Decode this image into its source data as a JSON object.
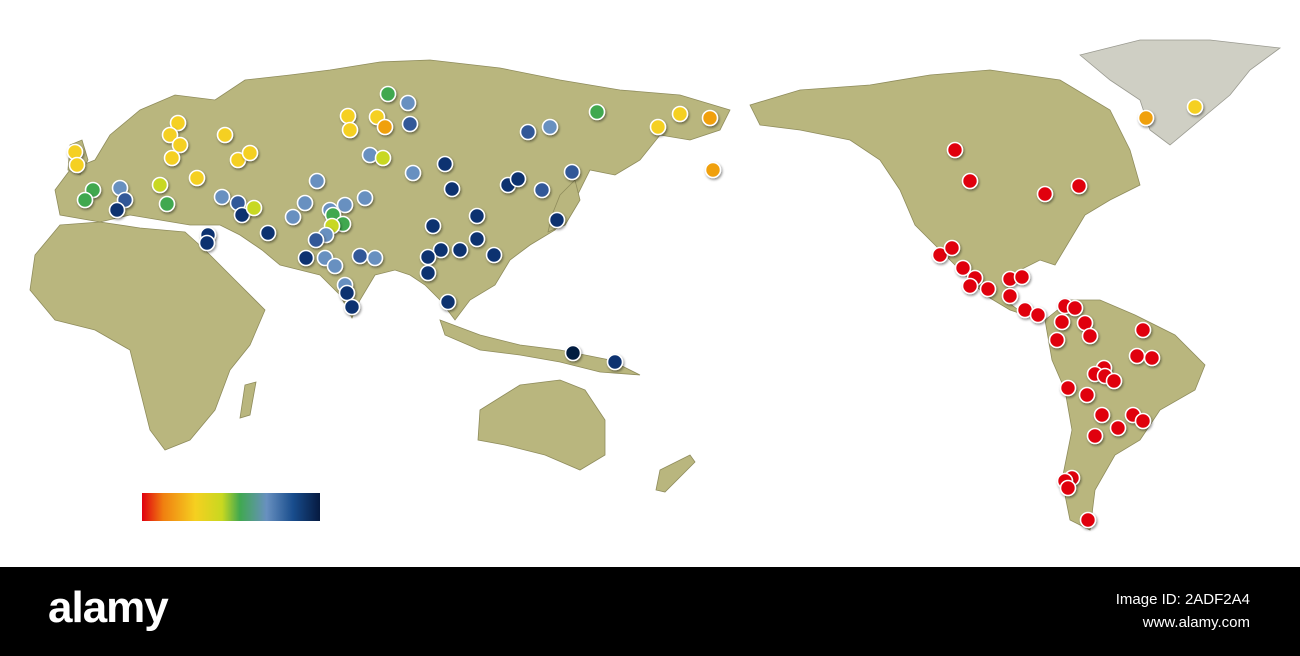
{
  "watermark": {
    "logo": "alamy",
    "image_id": "Image ID: 2ADF2A4",
    "url": "www.alamy.com"
  }
}
